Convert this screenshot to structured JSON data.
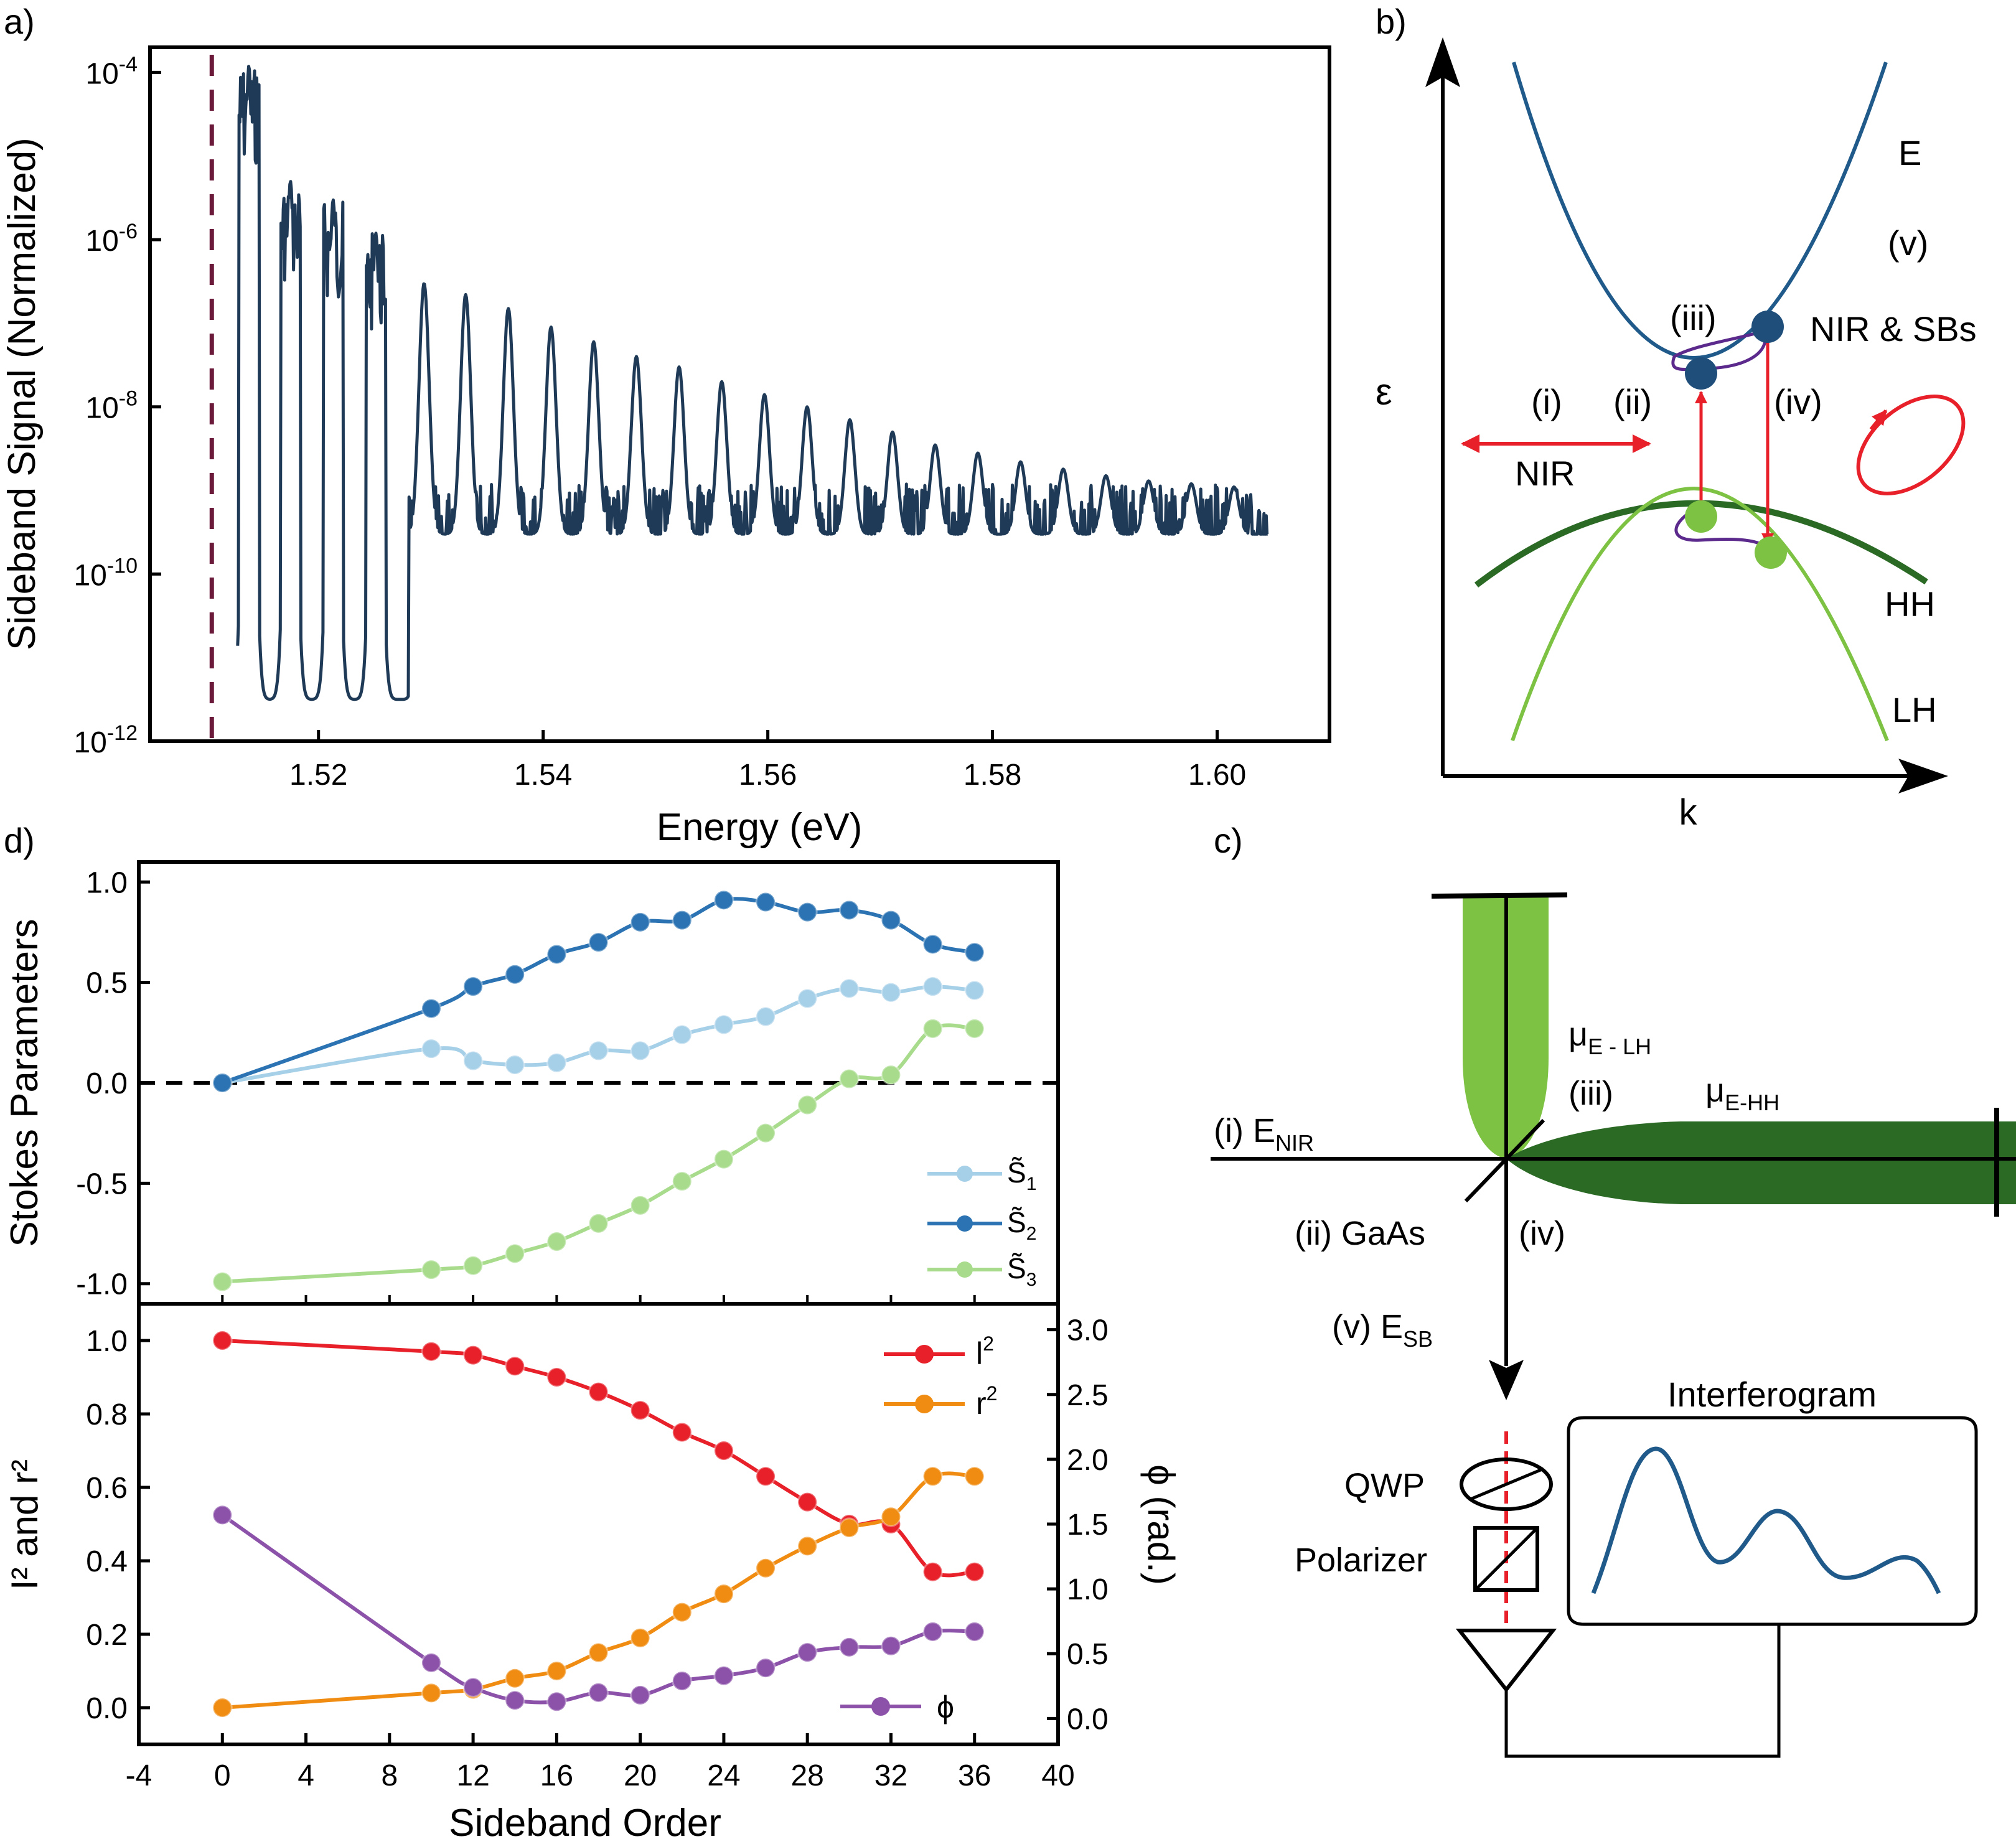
{
  "panel_labels": {
    "a": "a)",
    "b": "b)",
    "c": "c)",
    "d": "d)"
  },
  "chart_data": [
    {
      "panel": "a",
      "type": "line",
      "xlabel": "Energy (eV)",
      "ylabel": "Sideband Signal (Normalized)",
      "yscale": "log",
      "xlim": [
        1.505,
        1.61
      ],
      "ylim": [
        1e-12,
        0.0002
      ],
      "xticks": [
        "1.52",
        "1.54",
        "1.56",
        "1.58",
        "1.60"
      ],
      "xtick_values": [
        1.52,
        1.54,
        1.56,
        1.58,
        1.6
      ],
      "yticks": [
        {
          "base": "10",
          "exp": "-12",
          "value": 1e-12
        },
        {
          "base": "10",
          "exp": "-10",
          "value": 1e-10
        },
        {
          "base": "10",
          "exp": "-8",
          "value": 1e-08
        },
        {
          "base": "10",
          "exp": "-6",
          "value": 1e-06
        },
        {
          "base": "10",
          "exp": "-4",
          "value": 0.0001
        }
      ],
      "line_color": "#1f3a57",
      "dashed_marker": {
        "x": 1.5105,
        "color": "#6b1a3a"
      },
      "noise_range": [
        1.528,
        1.6045
      ],
      "noise_floor": 3e-10,
      "peaks": [
        {
          "x": 1.5138,
          "y": 0.00012
        },
        {
          "x": 1.5175,
          "y": 5e-06
        },
        {
          "x": 1.5213,
          "y": 3e-06
        },
        {
          "x": 1.5251,
          "y": 1.2e-06
        },
        {
          "x": 1.5294,
          "y": 3e-07
        },
        {
          "x": 1.5331,
          "y": 2.2e-07
        },
        {
          "x": 1.5369,
          "y": 1.5e-07
        },
        {
          "x": 1.5407,
          "y": 9e-08
        },
        {
          "x": 1.5445,
          "y": 6e-08
        },
        {
          "x": 1.5483,
          "y": 4e-08
        },
        {
          "x": 1.5521,
          "y": 3e-08
        },
        {
          "x": 1.5559,
          "y": 2e-08
        },
        {
          "x": 1.5597,
          "y": 1.4e-08
        },
        {
          "x": 1.5635,
          "y": 1e-08
        },
        {
          "x": 1.5673,
          "y": 7e-09
        },
        {
          "x": 1.5711,
          "y": 5e-09
        },
        {
          "x": 1.5749,
          "y": 3.5e-09
        },
        {
          "x": 1.5787,
          "y": 2.8e-09
        },
        {
          "x": 1.5825,
          "y": 2.2e-09
        },
        {
          "x": 1.5863,
          "y": 1.8e-09
        },
        {
          "x": 1.5901,
          "y": 1.5e-09
        },
        {
          "x": 1.5939,
          "y": 1.3e-09
        },
        {
          "x": 1.5977,
          "y": 1.2e-09
        },
        {
          "x": 1.6015,
          "y": 1.1e-09
        }
      ]
    },
    {
      "panel": "d-top",
      "type": "line",
      "xlabel": "",
      "ylabel": "Stokes Parameters",
      "xlim": [
        -4,
        40
      ],
      "ylim": [
        -1.1,
        1.1
      ],
      "yticks": [
        "-1.0",
        "-0.5",
        "0.0",
        "0.5",
        "1.0"
      ],
      "ytick_values": [
        -1.0,
        -0.5,
        0.0,
        0.5,
        1.0
      ],
      "zero_line": true,
      "legend": "bottom-right",
      "x": [
        0,
        10,
        12,
        14,
        16,
        18,
        20,
        22,
        24,
        26,
        28,
        30,
        32,
        34,
        36
      ],
      "series": [
        {
          "name": "S̃",
          "sub": "1",
          "color": "#a6cfe8",
          "values": [
            0.0,
            0.17,
            0.11,
            0.09,
            0.1,
            0.16,
            0.16,
            0.24,
            0.29,
            0.33,
            0.42,
            0.47,
            0.45,
            0.48,
            0.46
          ]
        },
        {
          "name": "S̃",
          "sub": "2",
          "color": "#2b73b3",
          "values": [
            0.0,
            0.37,
            0.48,
            0.54,
            0.64,
            0.7,
            0.8,
            0.81,
            0.91,
            0.9,
            0.85,
            0.86,
            0.81,
            0.69,
            0.65
          ]
        },
        {
          "name": "S̃",
          "sub": "3",
          "color": "#a8dc8c",
          "values": [
            -0.99,
            -0.93,
            -0.91,
            -0.85,
            -0.79,
            -0.7,
            -0.61,
            -0.49,
            -0.38,
            -0.25,
            -0.11,
            0.02,
            0.04,
            0.27,
            0.27
          ]
        }
      ]
    },
    {
      "panel": "d-bottom",
      "type": "line",
      "xlabel": "Sideband Order",
      "ylabel": "I² and r²",
      "ylabel_right": "ϕ (rad.)",
      "xlim": [
        -4,
        40
      ],
      "ylim": [
        -0.1,
        1.1
      ],
      "ylim_right": [
        -0.2,
        3.2
      ],
      "xticks": [
        "-4",
        "0",
        "4",
        "8",
        "12",
        "16",
        "20",
        "24",
        "28",
        "32",
        "36",
        "40"
      ],
      "xtick_values": [
        -4,
        0,
        4,
        8,
        12,
        16,
        20,
        24,
        28,
        32,
        36,
        40
      ],
      "yticks": [
        "0.0",
        "0.2",
        "0.4",
        "0.6",
        "0.8",
        "1.0"
      ],
      "ytick_values": [
        0.0,
        0.2,
        0.4,
        0.6,
        0.8,
        1.0
      ],
      "yticks_right": [
        "0.0",
        "0.5",
        "1.0",
        "1.5",
        "2.0",
        "2.5",
        "3.0"
      ],
      "ytick_values_right": [
        0.0,
        0.5,
        1.0,
        1.5,
        2.0,
        2.5,
        3.0
      ],
      "x": [
        0,
        10,
        12,
        14,
        16,
        18,
        20,
        22,
        24,
        26,
        28,
        30,
        32,
        34,
        36
      ],
      "series": [
        {
          "name": "l",
          "sup": "2",
          "axis": "left",
          "color": "#e8202a",
          "values": [
            1.0,
            0.97,
            0.96,
            0.93,
            0.9,
            0.86,
            0.81,
            0.75,
            0.7,
            0.63,
            0.56,
            0.5,
            0.5,
            0.37,
            0.37
          ]
        },
        {
          "name": "r",
          "sup": "2",
          "axis": "left",
          "color": "#f08c12",
          "values": [
            0.0,
            0.04,
            0.05,
            0.08,
            0.1,
            0.15,
            0.19,
            0.26,
            0.31,
            0.38,
            0.44,
            0.49,
            0.52,
            0.63,
            0.63
          ]
        },
        {
          "name": "ϕ",
          "axis": "right",
          "color": "#8c52aa",
          "values": [
            1.57,
            0.43,
            0.24,
            0.14,
            0.13,
            0.2,
            0.18,
            0.29,
            0.33,
            0.39,
            0.51,
            0.55,
            0.56,
            0.67,
            0.67
          ]
        }
      ]
    }
  ],
  "diagram_b": {
    "y_axis_label": "ε",
    "x_axis_label": "k",
    "band_E": "E",
    "band_HH": "HH",
    "band_LH": "LH",
    "step_i": "(i)",
    "step_ii": "(ii)",
    "step_iii": "(iii)",
    "step_iv": "(iv)",
    "step_v": "(v)",
    "nir_label": "NIR",
    "nir_sbs_label": "NIR & SBs",
    "colors": {
      "conduction": "#1f5a8a",
      "hh": "#2b6a25",
      "lh": "#7dc243",
      "arrow": "#e8202a",
      "loop": "#5b2a8c"
    }
  },
  "diagram_c": {
    "mu_e_lh": {
      "base": "μ",
      "sub": "E - LH"
    },
    "mu_e_hh": {
      "base": "μ",
      "sub": "E-HH"
    },
    "step_iii": "(iii)",
    "e_nir": {
      "prefix": "(i) E",
      "sub": "NIR"
    },
    "gaas": "(ii) GaAs",
    "step_iv": "(iv)",
    "e_sb": {
      "prefix": "(v) E",
      "sub": "SB"
    },
    "qwp": "QWP",
    "polarizer": "Polarizer",
    "interferogram": "Interferogram",
    "colors": {
      "lh": "#7dc243",
      "hh": "#2b6a25",
      "trace": "#1f5a8a",
      "beam": "#e8202a"
    }
  }
}
